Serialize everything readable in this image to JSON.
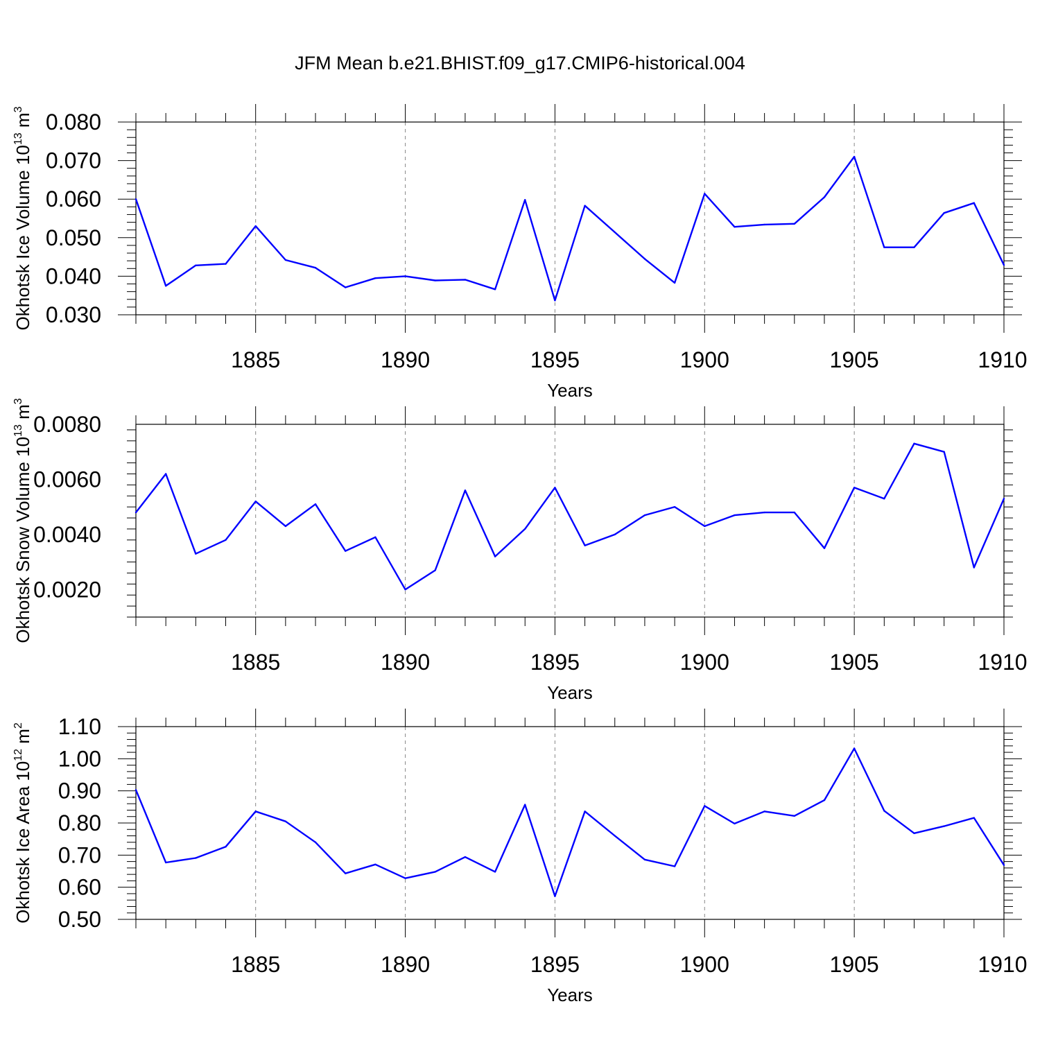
{
  "title": "JFM Mean b.e21.BHIST.f09_g17.CMIP6-historical.004",
  "colors": {
    "line": "#0000ff",
    "axis": "#000000",
    "grid": "#888888"
  },
  "chart_data": [
    {
      "type": "line",
      "title": "",
      "xlabel": "Years",
      "ylabel": "Okhotsk Ice Volume 10^13 m^3",
      "ylabel_parts": {
        "prefix": "Okhotsk Ice Volume 10",
        "exp1": "13",
        "mid": " m",
        "exp2": "3"
      },
      "xlim": [
        1881,
        1910
      ],
      "ylim": [
        0.03,
        0.08
      ],
      "x_ticks": [
        1885,
        1890,
        1895,
        1900,
        1905,
        1910
      ],
      "y_ticks": [
        0.03,
        0.04,
        0.05,
        0.06,
        0.07,
        0.08
      ],
      "y_tick_labels": [
        "0.030",
        "0.040",
        "0.050",
        "0.060",
        "0.070",
        "0.080"
      ],
      "grid": "vertical dashed at labeled x ticks",
      "x": [
        1881,
        1882,
        1883,
        1884,
        1885,
        1886,
        1887,
        1888,
        1889,
        1890,
        1891,
        1892,
        1893,
        1894,
        1895,
        1896,
        1897,
        1898,
        1899,
        1900,
        1901,
        1902,
        1903,
        1904,
        1905,
        1906,
        1907,
        1908,
        1909,
        1910
      ],
      "series": [
        {
          "values": [
            0.06,
            0.0375,
            0.0428,
            0.0432,
            0.053,
            0.0442,
            0.0422,
            0.0371,
            0.0395,
            0.04,
            0.0389,
            0.0391,
            0.0366,
            0.0598,
            0.0337,
            0.0583,
            0.0514,
            0.0445,
            0.0383,
            0.0614,
            0.0528,
            0.0534,
            0.0536,
            0.0605,
            0.071,
            0.0475,
            0.0475,
            0.0564,
            0.059,
            0.0429
          ]
        }
      ]
    },
    {
      "type": "line",
      "title": "",
      "xlabel": "Years",
      "ylabel": "Okhotsk Snow Volume 10^13 m^3",
      "ylabel_parts": {
        "prefix": "Okhotsk Snow Volume 10",
        "exp1": "13",
        "mid": " m",
        "exp2": "3"
      },
      "xlim": [
        1881,
        1910
      ],
      "ylim": [
        0.001,
        0.008
      ],
      "x_ticks": [
        1885,
        1890,
        1895,
        1900,
        1905,
        1910
      ],
      "y_ticks": [
        0.002,
        0.004,
        0.006,
        0.008
      ],
      "y_tick_labels": [
        "0.0020",
        "0.0040",
        "0.0060",
        "0.0080"
      ],
      "grid": "vertical dashed at labeled x ticks",
      "x": [
        1881,
        1882,
        1883,
        1884,
        1885,
        1886,
        1887,
        1888,
        1889,
        1890,
        1891,
        1892,
        1893,
        1894,
        1895,
        1896,
        1897,
        1898,
        1899,
        1900,
        1901,
        1902,
        1903,
        1904,
        1905,
        1906,
        1907,
        1908,
        1909,
        1910
      ],
      "series": [
        {
          "values": [
            0.0048,
            0.0062,
            0.0033,
            0.0038,
            0.0052,
            0.0043,
            0.0051,
            0.0034,
            0.0039,
            0.002,
            0.0027,
            0.0056,
            0.0032,
            0.0042,
            0.0057,
            0.0036,
            0.004,
            0.0047,
            0.005,
            0.0043,
            0.0047,
            0.0048,
            0.0048,
            0.0035,
            0.0057,
            0.0053,
            0.0073,
            0.007,
            0.0028,
            0.0053
          ]
        }
      ]
    },
    {
      "type": "line",
      "title": "",
      "xlabel": "Years",
      "ylabel": "Okhotsk Ice Area 10^12 m^2",
      "ylabel_parts": {
        "prefix": "Okhotsk Ice Area 10",
        "exp1": "12",
        "mid": " m",
        "exp2": "2"
      },
      "xlim": [
        1881,
        1910
      ],
      "ylim": [
        0.5,
        1.1
      ],
      "x_ticks": [
        1885,
        1890,
        1895,
        1900,
        1905,
        1910
      ],
      "y_ticks": [
        0.5,
        0.6,
        0.7,
        0.8,
        0.9,
        1.0,
        1.1
      ],
      "y_tick_labels": [
        "0.50",
        "0.60",
        "0.70",
        "0.80",
        "0.90",
        "1.00",
        "1.10"
      ],
      "grid": "vertical dashed at labeled x ticks",
      "x": [
        1881,
        1882,
        1883,
        1884,
        1885,
        1886,
        1887,
        1888,
        1889,
        1890,
        1891,
        1892,
        1893,
        1894,
        1895,
        1896,
        1897,
        1898,
        1899,
        1900,
        1901,
        1902,
        1903,
        1904,
        1905,
        1906,
        1907,
        1908,
        1909,
        1910
      ],
      "series": [
        {
          "values": [
            0.903,
            0.677,
            0.691,
            0.726,
            0.836,
            0.805,
            0.74,
            0.643,
            0.671,
            0.628,
            0.648,
            0.694,
            0.648,
            0.857,
            0.572,
            0.836,
            0.76,
            0.686,
            0.665,
            0.853,
            0.798,
            0.836,
            0.822,
            0.871,
            1.032,
            0.838,
            0.768,
            0.79,
            0.816,
            0.669
          ]
        }
      ]
    }
  ]
}
